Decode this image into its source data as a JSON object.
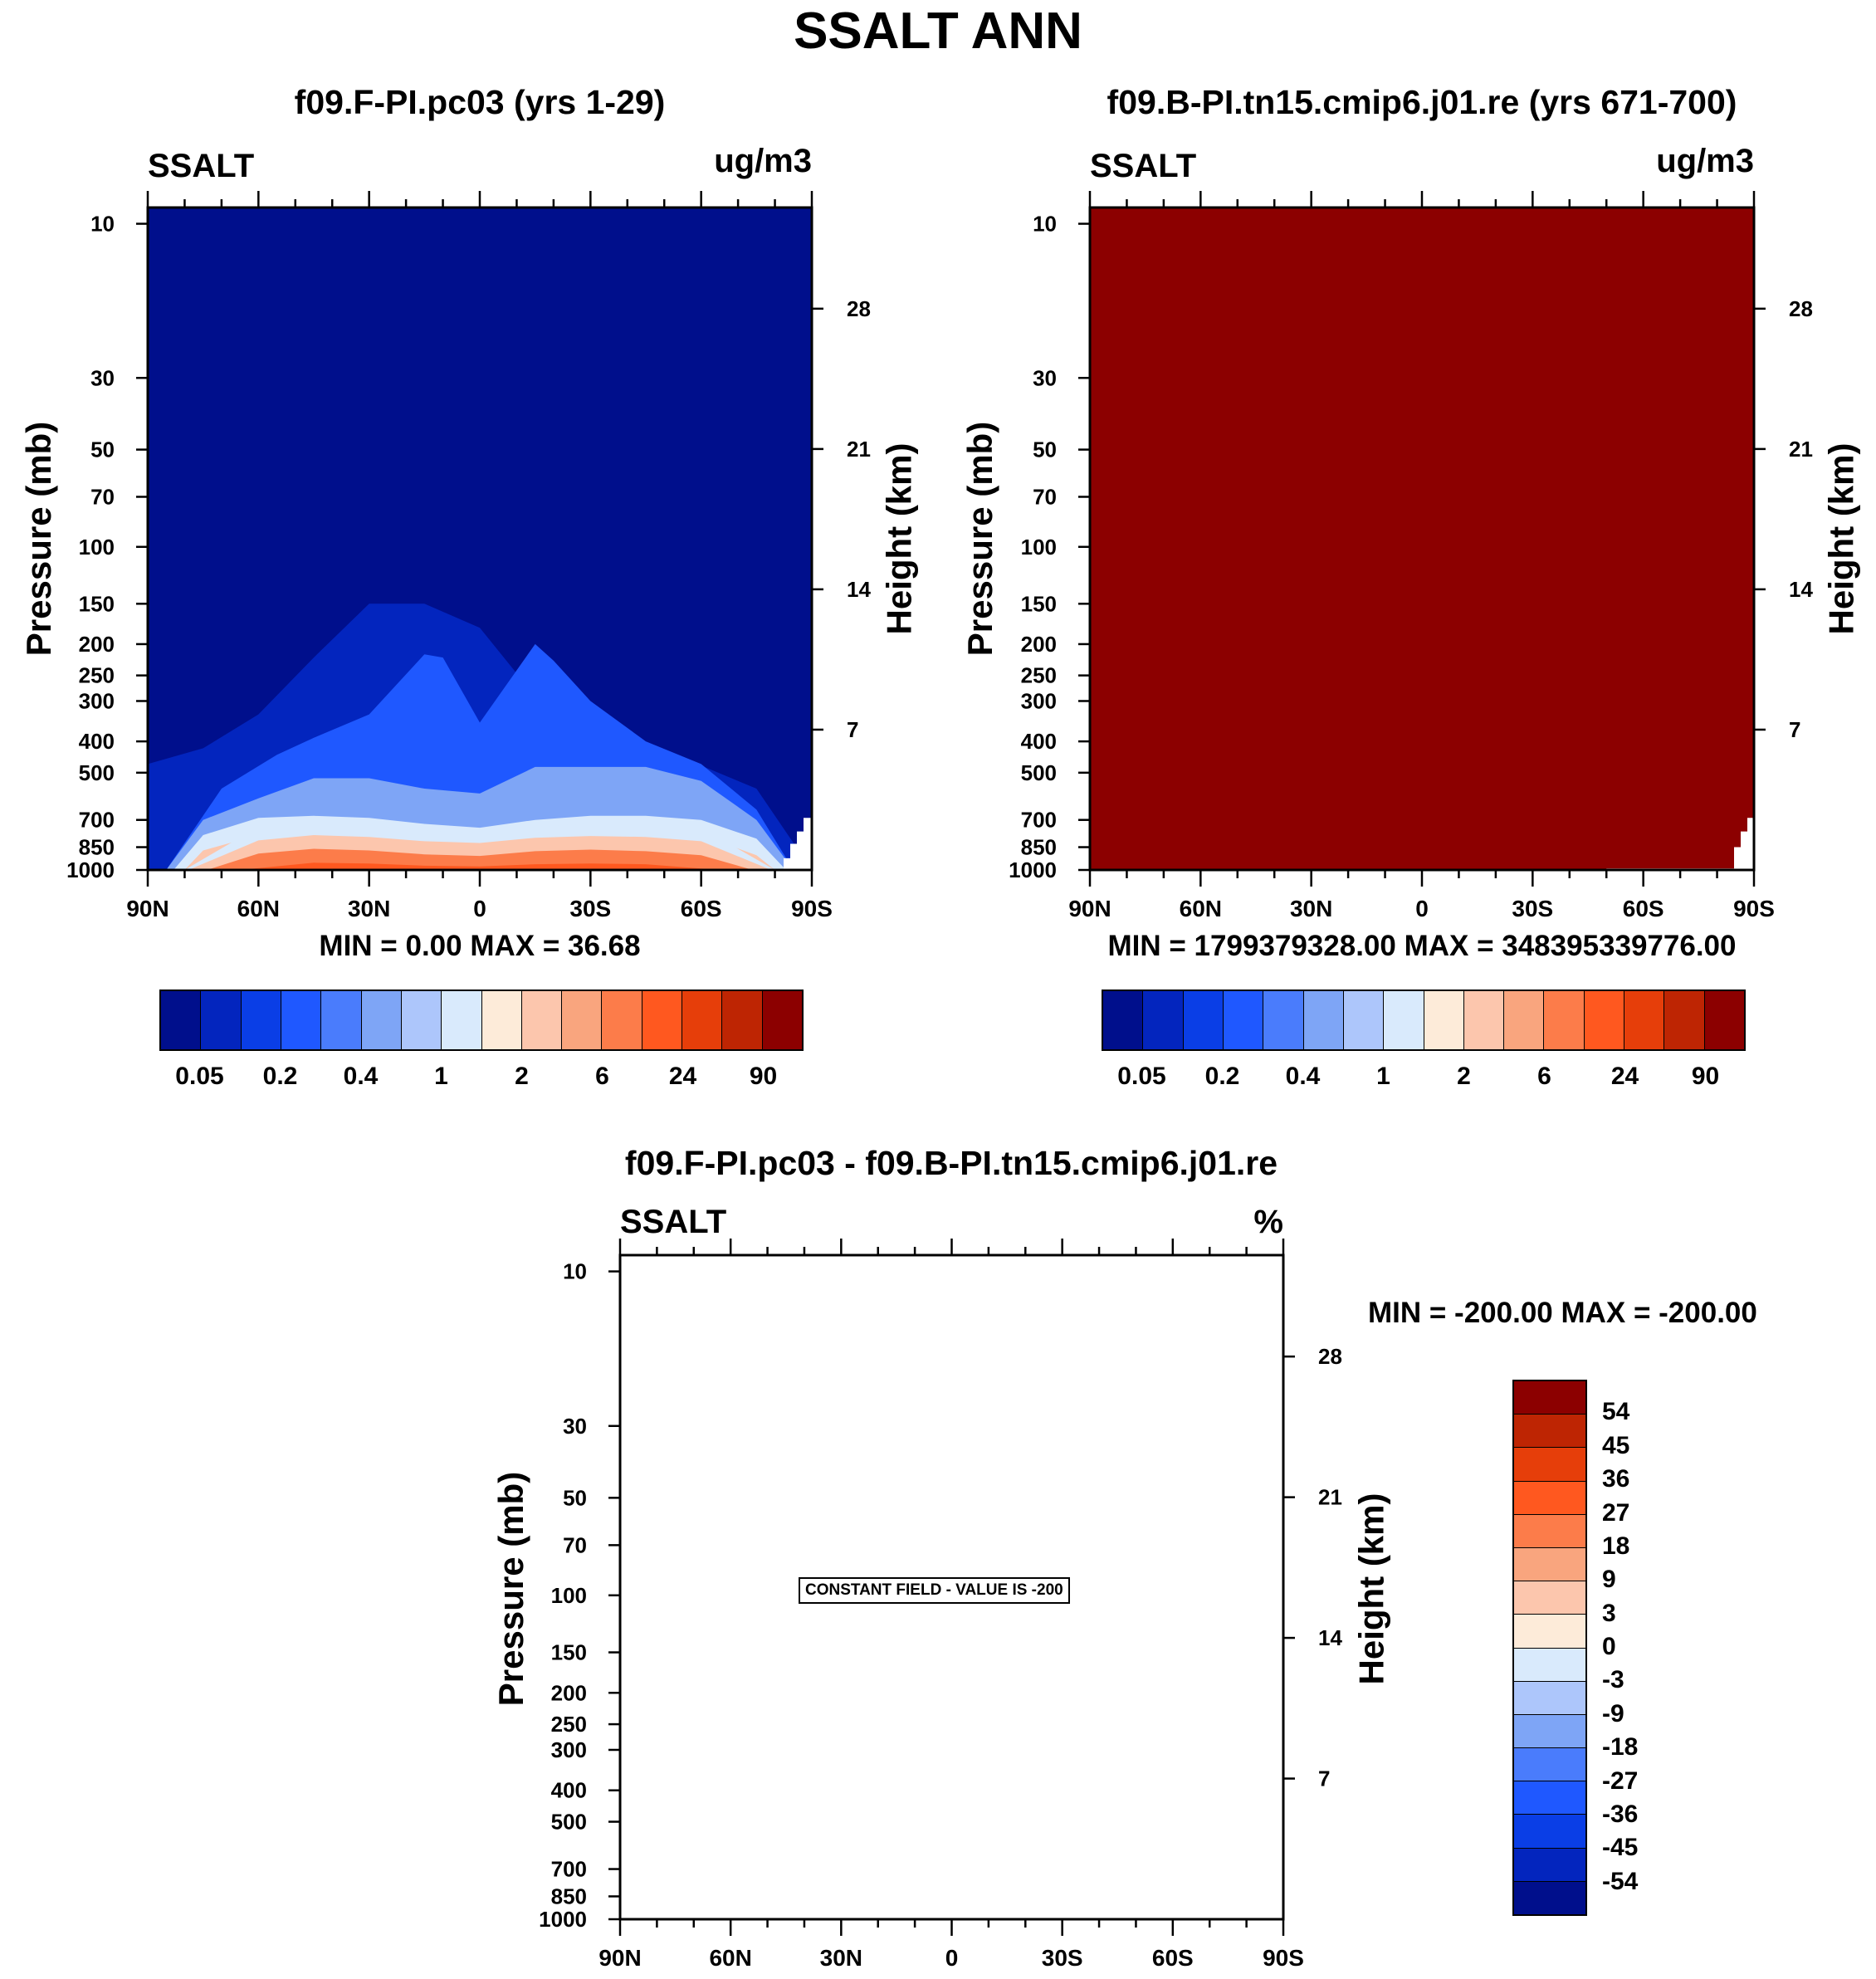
{
  "title": "SSALT ANN",
  "colors": {
    "palette": [
      "#000f8c",
      "#0325be",
      "#0a3ee6",
      "#1f58ff",
      "#4a7cfc",
      "#7ea5f6",
      "#adc6fb",
      "#d9eafc",
      "#fdebd9",
      "#fcc6ad",
      "#f9a57e",
      "#fc7c4a",
      "#ff581f",
      "#e63e0a",
      "#be2503",
      "#8c0000"
    ],
    "diff_palette": [
      "#000f8c",
      "#0325be",
      "#0a3ee6",
      "#1f58ff",
      "#4a7cfc",
      "#7ea5f6",
      "#adc6fb",
      "#d9eafc",
      "#fdebd9",
      "#fcc6ad",
      "#f9a57e",
      "#fc7c4a",
      "#ff581f",
      "#e63e0a",
      "#be2503",
      "#8c0000"
    ]
  },
  "panels": {
    "p1": {
      "title": "f09.F-PI.pc03 (yrs 1-29)",
      "left_label": "SSALT",
      "right_label": "ug/m3",
      "minmax": "MIN =   0.00  MAX =  36.68"
    },
    "p2": {
      "title": "f09.B-PI.tn15.cmip6.j01.re (yrs 671-700)",
      "left_label": "SSALT",
      "right_label": "ug/m3",
      "minmax": "MIN = 1799379328.00  MAX = 348395339776.00"
    },
    "p3": {
      "title": "f09.F-PI.pc03 - f09.B-PI.tn15.cmip6.j01.re",
      "left_label": "SSALT",
      "right_label": "%",
      "minmax": "MIN = -200.00  MAX = -200.00",
      "notice": "CONSTANT FIELD - VALUE IS -200"
    }
  },
  "axis_titles": {
    "y_left": "Pressure (mb)",
    "y_right": "Height (km)"
  },
  "colorbar_labels": [
    "0.05",
    "0.2",
    "0.4",
    "1",
    "2",
    "6",
    "24",
    "90"
  ],
  "diff_colorbar_labels": [
    "54",
    "45",
    "36",
    "27",
    "18",
    "9",
    "3",
    "0",
    "-3",
    "-9",
    "-18",
    "-27",
    "-36",
    "-45",
    "-54"
  ],
  "chart_data": [
    {
      "type": "heatmap",
      "title": "f09.F-PI.pc03 (yrs 1-29)",
      "variable": "SSALT",
      "units": "ug/m3",
      "x_ticks": [
        "90N",
        "60N",
        "30N",
        "0",
        "30S",
        "60S",
        "90S"
      ],
      "x_values": [
        90,
        60,
        30,
        0,
        -30,
        -60,
        -90
      ],
      "y_ticks": [
        10,
        30,
        50,
        70,
        100,
        150,
        200,
        250,
        300,
        400,
        500,
        700,
        850,
        1000
      ],
      "y2_ticks": [
        28,
        21,
        14,
        7
      ],
      "xlabel": "",
      "ylabel": "Pressure (mb)",
      "y2label": "Height (km)",
      "ylim": [
        10,
        1000
      ],
      "contour_levels": [
        0.05,
        0.1,
        0.2,
        0.3,
        0.4,
        0.7,
        1,
        1.5,
        2,
        4,
        6,
        12,
        24,
        48,
        90
      ],
      "min": 0.0,
      "max": 36.68,
      "contours": [
        {
          "level": 0.05,
          "lat": [
            -90,
            -75,
            -60,
            -45,
            -30,
            -15,
            0,
            15,
            30,
            45,
            60,
            75,
            90
          ],
          "p": [
            1000,
            560,
            475,
            440,
            380,
            290,
            178,
            150,
            150,
            220,
            330,
            420,
            470
          ]
        },
        {
          "level": 0.2,
          "lat": [
            -85,
            -75,
            -60,
            -45,
            -30,
            -20,
            -15,
            0,
            10,
            15,
            30,
            45,
            55,
            70,
            85
          ],
          "p": [
            1000,
            650,
            470,
            400,
            300,
            225,
            200,
            350,
            220,
            215,
            330,
            390,
            440,
            560,
            1000
          ]
        },
        {
          "level": 0.4,
          "lat": [
            -85,
            -75,
            -60,
            -45,
            -30,
            -15,
            0,
            15,
            30,
            45,
            60,
            75,
            85
          ],
          "p": [
            1000,
            700,
            530,
            480,
            480,
            480,
            580,
            560,
            520,
            520,
            600,
            700,
            1000
          ]
        },
        {
          "level": 1,
          "lat": [
            -83,
            -75,
            -60,
            -45,
            -30,
            -15,
            0,
            15,
            30,
            45,
            60,
            75,
            83
          ],
          "p": [
            1000,
            800,
            700,
            680,
            680,
            700,
            740,
            720,
            690,
            680,
            690,
            780,
            1000
          ]
        },
        {
          "level": 2,
          "lat": [
            -80,
            -75,
            -60,
            -45,
            -30,
            -15,
            0,
            15,
            30,
            45,
            60,
            75,
            80
          ],
          "p": [
            1000,
            900,
            780,
            760,
            760,
            770,
            800,
            790,
            760,
            750,
            780,
            870,
            1000
          ]
        },
        {
          "level": 6,
          "lat": [
            -78,
            -60,
            -45,
            -30,
            -15,
            0,
            15,
            30,
            45,
            60,
            78
          ],
          "p": [
            1000,
            850,
            820,
            810,
            820,
            850,
            840,
            820,
            810,
            840,
            1000
          ]
        },
        {
          "level": 24,
          "lat": [
            -70,
            -60,
            -45,
            -30,
            -15,
            0,
            15,
            30,
            45,
            60,
            70
          ],
          "p": [
            1000,
            960,
            930,
            920,
            930,
            960,
            950,
            930,
            920,
            950,
            1000
          ]
        }
      ]
    },
    {
      "type": "heatmap",
      "title": "f09.B-PI.tn15.cmip6.j01.re (yrs 671-700)",
      "variable": "SSALT",
      "units": "ug/m3",
      "x_ticks": [
        "90N",
        "60N",
        "30N",
        "0",
        "30S",
        "60S",
        "90S"
      ],
      "x_values": [
        90,
        60,
        30,
        0,
        -30,
        -60,
        -90
      ],
      "y_ticks": [
        10,
        30,
        50,
        70,
        100,
        150,
        200,
        250,
        300,
        400,
        500,
        700,
        850,
        1000
      ],
      "y2_ticks": [
        28,
        21,
        14,
        7
      ],
      "xlabel": "",
      "ylabel": "Pressure (mb)",
      "y2label": "Height (km)",
      "ylim": [
        10,
        1000
      ],
      "min": 1799379328.0,
      "max": 348395339776.0,
      "fill_level": 90
    },
    {
      "type": "heatmap",
      "title": "f09.F-PI.pc03 - f09.B-PI.tn15.cmip6.j01.re",
      "variable": "SSALT",
      "units": "%",
      "x_ticks": [
        "90N",
        "60N",
        "30N",
        "0",
        "30S",
        "60S",
        "90S"
      ],
      "x_values": [
        90,
        60,
        30,
        0,
        -30,
        -60,
        -90
      ],
      "y_ticks": [
        10,
        30,
        50,
        70,
        100,
        150,
        200,
        250,
        300,
        400,
        500,
        700,
        850,
        1000
      ],
      "y2_ticks": [
        28,
        21,
        14,
        7
      ],
      "xlabel": "",
      "ylabel": "Pressure (mb)",
      "y2label": "Height (km)",
      "ylim": [
        10,
        1000
      ],
      "contour_levels": [
        -54,
        -45,
        -36,
        -27,
        -18,
        -9,
        -3,
        0,
        3,
        9,
        18,
        27,
        36,
        45,
        54
      ],
      "min": -200.0,
      "max": -200.0,
      "constant_value": -200
    }
  ]
}
